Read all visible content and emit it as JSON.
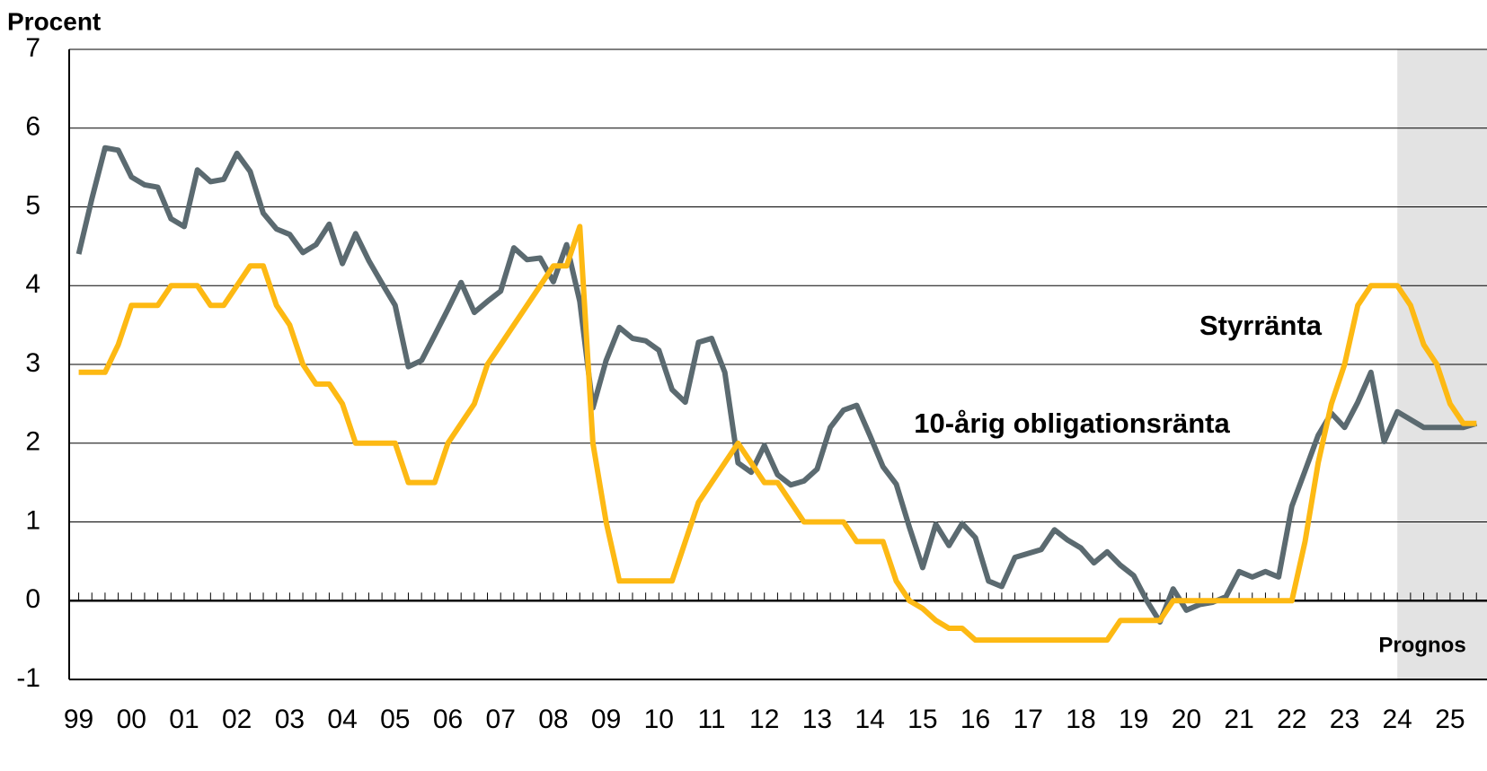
{
  "chart_data": {
    "type": "line",
    "y_axis_label": "Procent",
    "x": [
      1999,
      1999.25,
      1999.5,
      1999.75,
      2000,
      2000.25,
      2000.5,
      2000.75,
      2001,
      2001.25,
      2001.5,
      2001.75,
      2002,
      2002.25,
      2002.5,
      2002.75,
      2003,
      2003.25,
      2003.5,
      2003.75,
      2004,
      2004.25,
      2004.5,
      2004.75,
      2005,
      2005.25,
      2005.5,
      2005.75,
      2006,
      2006.25,
      2006.5,
      2006.75,
      2007,
      2007.25,
      2007.5,
      2007.75,
      2008,
      2008.25,
      2008.5,
      2008.75,
      2009,
      2009.25,
      2009.5,
      2009.75,
      2010,
      2010.25,
      2010.5,
      2010.75,
      2011,
      2011.25,
      2011.5,
      2011.75,
      2012,
      2012.25,
      2012.5,
      2012.75,
      2013,
      2013.25,
      2013.5,
      2013.75,
      2014,
      2014.25,
      2014.5,
      2014.75,
      2015,
      2015.25,
      2015.5,
      2015.75,
      2016,
      2016.25,
      2016.5,
      2016.75,
      2017,
      2017.25,
      2017.5,
      2017.75,
      2018,
      2018.25,
      2018.5,
      2018.75,
      2019,
      2019.25,
      2019.5,
      2019.75,
      2020,
      2020.25,
      2020.5,
      2020.75,
      2021,
      2021.25,
      2021.5,
      2021.75,
      2022,
      2022.25,
      2022.5,
      2022.75,
      2023,
      2023.25,
      2023.5,
      2023.75,
      2024,
      2024.25,
      2024.5,
      2024.75,
      2025,
      2025.25,
      2025.5
    ],
    "series": [
      {
        "name": "10-årig obligationsränta",
        "color": "#5b6a70",
        "values": [
          4.4,
          5.1,
          5.75,
          5.72,
          5.38,
          5.28,
          5.25,
          4.85,
          4.75,
          5.47,
          5.32,
          5.35,
          5.68,
          5.45,
          4.92,
          4.72,
          4.65,
          4.42,
          4.52,
          4.78,
          4.28,
          4.66,
          4.32,
          4.03,
          3.75,
          2.97,
          3.05,
          3.37,
          3.7,
          4.04,
          3.66,
          3.8,
          3.93,
          4.48,
          4.33,
          4.35,
          4.05,
          4.52,
          3.8,
          2.45,
          3.05,
          3.47,
          3.33,
          3.3,
          3.18,
          2.68,
          2.52,
          3.28,
          3.33,
          2.9,
          1.75,
          1.63,
          1.97,
          1.6,
          1.47,
          1.52,
          1.67,
          2.2,
          2.42,
          2.48,
          2.1,
          1.7,
          1.48,
          0.93,
          0.42,
          0.97,
          0.7,
          0.98,
          0.8,
          0.25,
          0.18,
          0.55,
          0.6,
          0.65,
          0.9,
          0.77,
          0.67,
          0.48,
          0.62,
          0.45,
          0.32,
          0.0,
          -0.27,
          0.15,
          -0.12,
          -0.05,
          -0.02,
          0.05,
          0.37,
          0.3,
          0.37,
          0.3,
          1.2,
          1.65,
          2.1,
          2.38,
          2.2,
          2.52,
          2.9,
          2.02,
          2.4,
          2.3,
          2.2,
          2.2,
          2.2,
          2.2,
          2.25
        ]
      },
      {
        "name": "Styrränta",
        "color": "#fdb913",
        "values": [
          2.9,
          2.9,
          2.9,
          3.25,
          3.75,
          3.75,
          3.75,
          4.0,
          4.0,
          4.0,
          3.75,
          3.75,
          4.0,
          4.25,
          4.25,
          3.75,
          3.5,
          3.0,
          2.75,
          2.75,
          2.5,
          2.0,
          2.0,
          2.0,
          2.0,
          1.5,
          1.5,
          1.5,
          2.0,
          2.25,
          2.5,
          3.0,
          3.25,
          3.5,
          3.75,
          4.0,
          4.25,
          4.25,
          4.75,
          2.0,
          1.0,
          0.25,
          0.25,
          0.25,
          0.25,
          0.25,
          0.75,
          1.25,
          1.5,
          1.75,
          2.0,
          1.75,
          1.5,
          1.5,
          1.25,
          1.0,
          1.0,
          1.0,
          1.0,
          0.75,
          0.75,
          0.75,
          0.25,
          0.0,
          -0.1,
          -0.25,
          -0.35,
          -0.35,
          -0.5,
          -0.5,
          -0.5,
          -0.5,
          -0.5,
          -0.5,
          -0.5,
          -0.5,
          -0.5,
          -0.5,
          -0.5,
          -0.25,
          -0.25,
          -0.25,
          -0.25,
          0.0,
          0.0,
          0.0,
          0.0,
          0.0,
          0.0,
          0.0,
          0.0,
          0.0,
          0.0,
          0.75,
          1.75,
          2.5,
          3.0,
          3.75,
          4.0,
          4.0,
          4.0,
          3.75,
          3.25,
          3.0,
          2.5,
          2.25,
          2.25
        ]
      }
    ],
    "forecast_label": "Prognos",
    "forecast_from": 2024,
    "xlim": [
      1998.82,
      2025.7
    ],
    "xticks": [
      {
        "value": 1999,
        "label": "99"
      },
      {
        "value": 2000,
        "label": "00"
      },
      {
        "value": 2001,
        "label": "01"
      },
      {
        "value": 2002,
        "label": "02"
      },
      {
        "value": 2003,
        "label": "03"
      },
      {
        "value": 2004,
        "label": "04"
      },
      {
        "value": 2005,
        "label": "05"
      },
      {
        "value": 2006,
        "label": "06"
      },
      {
        "value": 2007,
        "label": "07"
      },
      {
        "value": 2008,
        "label": "08"
      },
      {
        "value": 2009,
        "label": "09"
      },
      {
        "value": 2010,
        "label": "10"
      },
      {
        "value": 2011,
        "label": "11"
      },
      {
        "value": 2012,
        "label": "12"
      },
      {
        "value": 2013,
        "label": "13"
      },
      {
        "value": 2014,
        "label": "14"
      },
      {
        "value": 2015,
        "label": "15"
      },
      {
        "value": 2016,
        "label": "16"
      },
      {
        "value": 2017,
        "label": "17"
      },
      {
        "value": 2018,
        "label": "18"
      },
      {
        "value": 2019,
        "label": "19"
      },
      {
        "value": 2020,
        "label": "20"
      },
      {
        "value": 2021,
        "label": "21"
      },
      {
        "value": 2022,
        "label": "22"
      },
      {
        "value": 2023,
        "label": "23"
      },
      {
        "value": 2024,
        "label": "24"
      },
      {
        "value": 2025,
        "label": "25"
      }
    ],
    "ylim": [
      -1,
      7
    ],
    "yticks": [
      -1,
      0,
      1,
      2,
      3,
      4,
      5,
      6,
      7
    ],
    "grid": true
  }
}
